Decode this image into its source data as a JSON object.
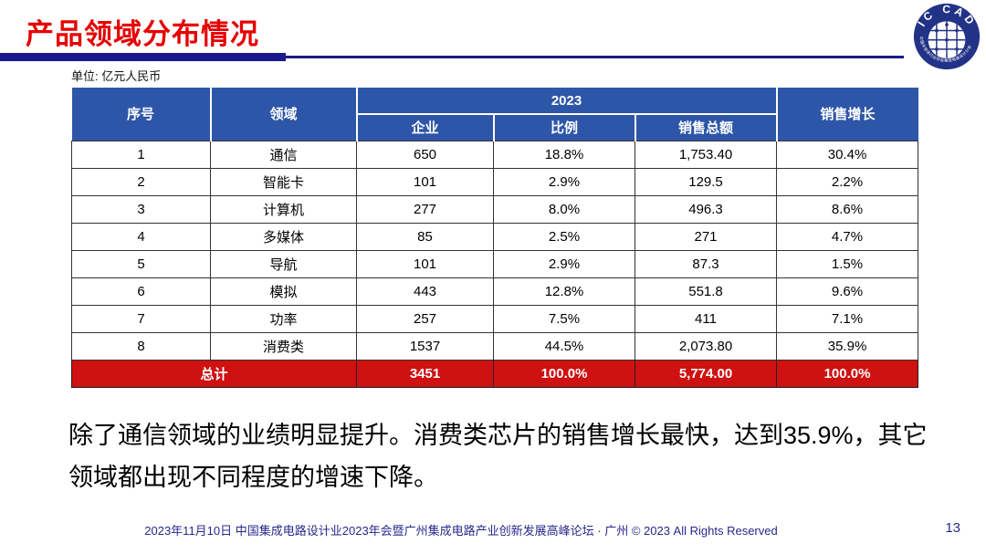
{
  "slide": {
    "title": "产品领域分布情况",
    "unit_label": "单位: 亿元人民币",
    "body_text": "除了通信领域的业绩明显提升。消费类芯片的销售增长最快，达到35.9%，其它领域都出现不同程度的增速下降。",
    "footer": "2023年11月10日 中国集成电路设计业2023年会暨广州集成电路产业创新发展高峰论坛 · 广州 © 2023 All Rights Reserved",
    "page_number": "13"
  },
  "logo": {
    "arc_text_top": "IC CAD",
    "arc_text_bottom": "中国半导体行业协会集成电路设计分会"
  },
  "colors": {
    "title_red": "#e60000",
    "divider_navy": "#1a1a8c",
    "header_blue": "#2e56a8",
    "total_row_red": "#cf1111",
    "footer_navy": "#28288c"
  },
  "table": {
    "header": {
      "col_no": "序号",
      "col_domain": "领域",
      "year_group": "2023",
      "col_companies": "企业",
      "col_ratio": "比例",
      "col_sales": "销售总额",
      "col_growth": "销售增长"
    },
    "rows": [
      [
        "1",
        "通信",
        "650",
        "18.8%",
        "1,753.40",
        "30.4%"
      ],
      [
        "2",
        "智能卡",
        "101",
        "2.9%",
        "129.5",
        "2.2%"
      ],
      [
        "3",
        "计算机",
        "277",
        "8.0%",
        "496.3",
        "8.6%"
      ],
      [
        "4",
        "多媒体",
        "85",
        "2.5%",
        "271",
        "4.7%"
      ],
      [
        "5",
        "导航",
        "101",
        "2.9%",
        "87.3",
        "1.5%"
      ],
      [
        "6",
        "模拟",
        "443",
        "12.8%",
        "551.8",
        "9.6%"
      ],
      [
        "7",
        "功率",
        "257",
        "7.5%",
        "411",
        "7.1%"
      ],
      [
        "8",
        "消费类",
        "1537",
        "44.5%",
        "2,073.80",
        "35.9%"
      ]
    ],
    "total_row": {
      "label": "总计",
      "values": [
        "3451",
        "100.0%",
        "5,774.00",
        "100.0%"
      ]
    }
  },
  "chart_data": {
    "type": "table",
    "title": "产品领域分布情况",
    "unit": "亿元人民币",
    "year": "2023",
    "columns": [
      "序号",
      "领域",
      "企业",
      "比例",
      "销售总额",
      "销售增长"
    ],
    "rows": [
      {
        "no": 1,
        "domain": "通信",
        "companies": 650,
        "ratio_pct": 18.8,
        "total_sales": 1753.4,
        "sales_growth_pct": 30.4
      },
      {
        "no": 2,
        "domain": "智能卡",
        "companies": 101,
        "ratio_pct": 2.9,
        "total_sales": 129.5,
        "sales_growth_pct": 2.2
      },
      {
        "no": 3,
        "domain": "计算机",
        "companies": 277,
        "ratio_pct": 8.0,
        "total_sales": 496.3,
        "sales_growth_pct": 8.6
      },
      {
        "no": 4,
        "domain": "多媒体",
        "companies": 85,
        "ratio_pct": 2.5,
        "total_sales": 271,
        "sales_growth_pct": 4.7
      },
      {
        "no": 5,
        "domain": "导航",
        "companies": 101,
        "ratio_pct": 2.9,
        "total_sales": 87.3,
        "sales_growth_pct": 1.5
      },
      {
        "no": 6,
        "domain": "模拟",
        "companies": 443,
        "ratio_pct": 12.8,
        "total_sales": 551.8,
        "sales_growth_pct": 9.6
      },
      {
        "no": 7,
        "domain": "功率",
        "companies": 257,
        "ratio_pct": 7.5,
        "total_sales": 411,
        "sales_growth_pct": 7.1
      },
      {
        "no": 8,
        "domain": "消费类",
        "companies": 1537,
        "ratio_pct": 44.5,
        "total_sales": 2073.8,
        "sales_growth_pct": 35.9
      }
    ],
    "total": {
      "label": "总计",
      "companies": 3451,
      "ratio_pct": 100.0,
      "total_sales": 5774.0,
      "sales_growth_pct": 100.0
    }
  }
}
